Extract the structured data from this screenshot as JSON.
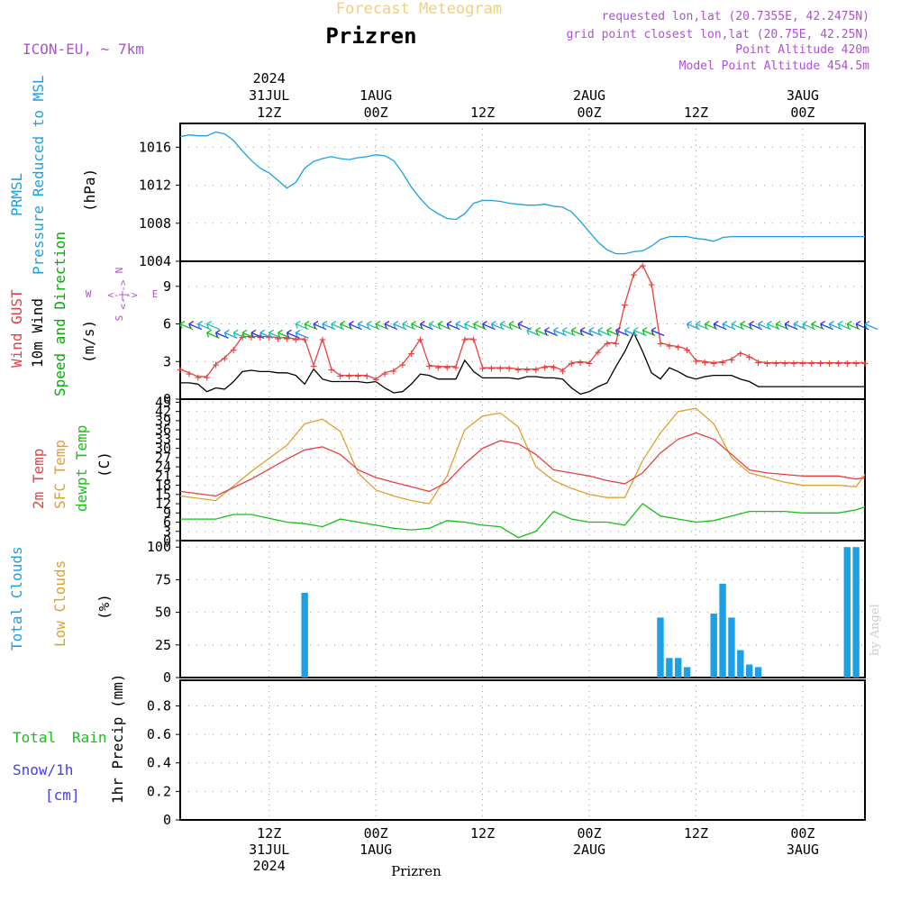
{
  "header": {
    "product_title": "Forecast Meteogram",
    "location": "Prizren",
    "model": "ICON-EU, ~ 7km",
    "requested": "requested lon,lat (20.7355E, 42.2475N)",
    "grid_point": "grid point closest lon,lat (20.75E, 42.25N)",
    "point_altitude": "Point Altitude 420m",
    "model_altitude": "Model Point Altitude 454.5m",
    "footer_location": "Prizren",
    "credit": "by Angel"
  },
  "colors": {
    "pressure": "#1ba0e6",
    "gust": "#e84040",
    "wind": "#000000",
    "wind_dir": "#00b000",
    "t2m": "#e84040",
    "tsfc": "#e0a030",
    "dew": "#18c018",
    "clouds": "#1ba0e6",
    "low_clouds": "#e0a030",
    "rain": "#18c018",
    "snow": "#4040e8",
    "header": "#b050d0"
  },
  "time_axis": {
    "top": [
      {
        "line1": "2024",
        "line2": "31JUL",
        "line3": "12Z",
        "hour": 12
      },
      {
        "line1": "",
        "line2": "1AUG",
        "line3": "00Z",
        "hour": 24
      },
      {
        "line1": "",
        "line2": "",
        "line3": "12Z",
        "hour": 36
      },
      {
        "line1": "",
        "line2": "2AUG",
        "line3": "00Z",
        "hour": 48
      },
      {
        "line1": "",
        "line2": "",
        "line3": "12Z",
        "hour": 60
      },
      {
        "line1": "",
        "line2": "3AUG",
        "line3": "00Z",
        "hour": 72
      }
    ],
    "bottom": [
      {
        "line1": "12Z",
        "line2": "31JUL",
        "line3": "2024",
        "hour": 12
      },
      {
        "line1": "00Z",
        "line2": "1AUG",
        "line3": "",
        "hour": 24
      },
      {
        "line1": "12Z",
        "line2": "",
        "line3": "",
        "hour": 36
      },
      {
        "line1": "00Z",
        "line2": "2AUG",
        "line3": "",
        "hour": 48
      },
      {
        "line1": "12Z",
        "line2": "",
        "line3": "",
        "hour": 60
      },
      {
        "line1": "00Z",
        "line2": "3AUG",
        "line3": "",
        "hour": 72
      }
    ]
  },
  "panels": {
    "pressure": {
      "label1": "PRMSL",
      "label2": "Pressure Reduced to MSL",
      "unit": "(hPa)",
      "ticks": [
        "1004",
        "1008",
        "1012",
        "1016"
      ]
    },
    "wind": {
      "label1": "Wind GUST",
      "label2": "10m Wind",
      "label3": "Speed and Direction",
      "unit": "(m/s)",
      "ticks": [
        "0",
        "3",
        "6",
        "9"
      ],
      "compass_n": "N",
      "compass_s": "S",
      "compass_w": "W",
      "compass_e": "E",
      "compass_arrow": "<-|->"
    },
    "temp": {
      "label1": "2m Temp",
      "label2": "SFC Temp",
      "label3": "dewpt Temp",
      "unit": "(C)",
      "ticks": [
        "0",
        "3",
        "6",
        "9",
        "12",
        "15",
        "18",
        "21",
        "24",
        "27",
        "30",
        "33",
        "36",
        "39",
        "42",
        "45"
      ]
    },
    "clouds": {
      "label1": "Total Clouds",
      "label2": "Low Clouds",
      "unit": "(%)",
      "ticks": [
        "0",
        "25",
        "50",
        "75",
        "100"
      ]
    },
    "precip": {
      "label1": "Total",
      "label1b": "Rain",
      "label2": "Snow/1h",
      "label3": "[cm]",
      "unit": "1hr Precip (mm)",
      "ticks": [
        "0",
        "0.2",
        "0.4",
        "0.6",
        "0.8"
      ]
    }
  },
  "chart_data": [
    {
      "type": "line",
      "title": "PRMSL Pressure Reduced to MSL",
      "ylabel": "(hPa)",
      "ylim": [
        1004,
        1018.5
      ],
      "xlim": [
        2,
        79
      ],
      "x_unit": "hours from 31JUL 00Z",
      "series": [
        {
          "name": "PRMSL",
          "x": [
            2,
            3,
            4,
            5,
            6,
            7,
            8,
            9,
            10,
            11,
            12,
            13,
            14,
            15,
            16,
            17,
            18,
            19,
            20,
            21,
            22,
            23,
            24,
            25,
            26,
            27,
            28,
            29,
            30,
            31,
            32,
            33,
            34,
            35,
            36,
            37,
            38,
            39,
            40,
            41,
            42,
            43,
            44,
            45,
            46,
            47,
            48,
            49,
            50,
            51,
            52,
            53,
            54,
            55,
            56,
            57,
            58,
            59,
            60,
            61,
            62,
            63,
            64,
            65,
            66,
            67,
            68,
            69,
            70,
            71,
            72,
            73,
            74,
            75,
            76,
            77,
            78,
            79
          ],
          "values": [
            1017.1,
            1017.3,
            1017.2,
            1017.2,
            1017.6,
            1017.4,
            1016.7,
            1015.6,
            1014.6,
            1013.8,
            1013.3,
            1012.5,
            1011.7,
            1012.3,
            1013.8,
            1014.5,
            1014.8,
            1015,
            1014.8,
            1014.7,
            1014.9,
            1015,
            1015.2,
            1015.1,
            1014.6,
            1013.3,
            1011.8,
            1010.6,
            1009.6,
            1009.0,
            1008.5,
            1008.4,
            1009.0,
            1010.1,
            1010.4,
            1010.4,
            1010.3,
            1010.1,
            1010.0,
            1009.9,
            1009.9,
            1010.0,
            1009.8,
            1009.7,
            1009.2,
            1008.2,
            1007.1,
            1006.0,
            1005.2,
            1004.8,
            1004.8,
            1005.0,
            1005.1,
            1005.6,
            1006.3,
            1006.6,
            1006.6,
            1006.6,
            1006.4,
            1006.3,
            1006.1,
            1006.5,
            1006.6,
            1006.6,
            1006.6,
            1006.6,
            1006.6,
            1006.6,
            1006.6,
            1006.6,
            1006.6,
            1006.6,
            1006.6,
            1006.6,
            1006.6,
            1006.6,
            1006.6,
            1006.6
          ]
        }
      ]
    },
    {
      "type": "line",
      "title": "Wind",
      "ylabel": "(m/s)",
      "ylim": [
        0,
        11
      ],
      "xlim": [
        2,
        79
      ],
      "series": [
        {
          "name": "Wind GUST",
          "x": [
            2,
            3,
            4,
            5,
            6,
            7,
            8,
            9,
            10,
            11,
            12,
            13,
            14,
            15,
            16,
            17,
            18,
            19,
            20,
            21,
            22,
            23,
            24,
            25,
            26,
            27,
            28,
            29,
            30,
            31,
            32,
            33,
            34,
            35,
            36,
            37,
            38,
            39,
            40,
            41,
            42,
            43,
            44,
            45,
            46,
            47,
            48,
            49,
            50,
            51,
            52,
            53,
            54,
            55,
            56,
            57,
            58,
            59,
            60,
            61,
            62,
            63,
            64,
            65,
            66,
            67,
            68,
            69,
            70,
            71,
            72,
            73,
            74,
            75,
            76,
            77,
            78,
            79
          ],
          "values": [
            2.4,
            2.1,
            1.8,
            1.8,
            2.8,
            3.3,
            4.0,
            5.0,
            5.0,
            5.0,
            5.0,
            4.9,
            4.9,
            4.8,
            4.8,
            2.7,
            4.8,
            2.4,
            1.9,
            1.9,
            1.9,
            1.9,
            1.6,
            2.1,
            2.3,
            2.8,
            3.7,
            4.8,
            2.7,
            2.6,
            2.6,
            2.6,
            4.8,
            4.8,
            2.5,
            2.5,
            2.5,
            2.5,
            2.4,
            2.4,
            2.4,
            2.6,
            2.6,
            2.3,
            2.9,
            3.0,
            2.9,
            3.8,
            4.5,
            4.5,
            7.6,
            10.0,
            10.7,
            9.2,
            4.5,
            4.3,
            4.2,
            4.0,
            3.1,
            3.0,
            2.9,
            3.0,
            3.2,
            3.7,
            3.4,
            3.0,
            2.9,
            2.9,
            2.9,
            2.9,
            2.9,
            2.9,
            2.9,
            2.9,
            2.9,
            2.9,
            2.9,
            2.9
          ]
        },
        {
          "name": "10m Wind",
          "x": [
            2,
            3,
            4,
            5,
            6,
            7,
            8,
            9,
            10,
            11,
            12,
            13,
            14,
            15,
            16,
            17,
            18,
            19,
            20,
            21,
            22,
            23,
            24,
            25,
            26,
            27,
            28,
            29,
            30,
            31,
            32,
            33,
            34,
            35,
            36,
            37,
            38,
            39,
            40,
            41,
            42,
            43,
            44,
            45,
            46,
            47,
            48,
            49,
            50,
            51,
            52,
            53,
            54,
            55,
            56,
            57,
            58,
            59,
            60,
            61,
            62,
            63,
            64,
            65,
            66,
            67,
            68,
            69,
            70,
            71,
            72,
            73,
            74,
            75,
            76,
            77,
            78,
            79
          ],
          "values": [
            1.3,
            1.3,
            1.2,
            0.6,
            0.9,
            0.8,
            1.4,
            2.2,
            2.3,
            2.2,
            2.2,
            2.1,
            2.1,
            1.9,
            1.2,
            2.4,
            1.6,
            1.4,
            1.4,
            1.4,
            1.4,
            1.3,
            1.4,
            0.9,
            0.5,
            0.6,
            1.2,
            2.0,
            1.9,
            1.6,
            1.6,
            1.6,
            3.1,
            2.2,
            1.7,
            1.7,
            1.7,
            1.7,
            1.6,
            1.8,
            1.8,
            1.7,
            1.7,
            1.6,
            0.9,
            0.4,
            0.6,
            1.0,
            1.3,
            2.6,
            3.8,
            5.3,
            3.8,
            2.1,
            1.6,
            2.5,
            2.2,
            1.8,
            1.6,
            1.8,
            1.9,
            1.9,
            1.9,
            1.6,
            1.4,
            1.0,
            1.0,
            1.0,
            1.0,
            1.0,
            1.0,
            1.0,
            1.0,
            1.0,
            1.0,
            1.0,
            1.0,
            1.0
          ]
        }
      ]
    },
    {
      "type": "line",
      "title": "Temperature",
      "ylabel": "(C)",
      "ylim": [
        0,
        46
      ],
      "xlim": [
        2,
        79
      ],
      "series": [
        {
          "name": "2m Temp",
          "x": [
            2,
            6,
            10,
            14,
            16,
            18,
            20,
            22,
            24,
            26,
            28,
            30,
            32,
            34,
            36,
            38,
            40,
            42,
            44,
            46,
            48,
            50,
            52,
            54,
            56,
            58,
            60,
            62,
            64,
            66,
            68,
            70,
            72,
            74,
            76,
            78,
            79
          ],
          "values": [
            16,
            14.5,
            20,
            26.5,
            29.5,
            30.5,
            28,
            23,
            20.5,
            19,
            17.5,
            16,
            19,
            25,
            30,
            32.5,
            31.5,
            28,
            23,
            22,
            21,
            19.5,
            18.5,
            22,
            28.5,
            33,
            35,
            33,
            28,
            23,
            22,
            21.5,
            21,
            21,
            21,
            20,
            20.5
          ]
        },
        {
          "name": "SFC Temp",
          "x": [
            2,
            6,
            10,
            14,
            16,
            18,
            20,
            22,
            24,
            26,
            28,
            30,
            32,
            34,
            36,
            38,
            40,
            42,
            44,
            46,
            48,
            50,
            52,
            54,
            56,
            58,
            60,
            62,
            64,
            66,
            68,
            70,
            72,
            74,
            76,
            78,
            79
          ],
          "values": [
            14.5,
            13.0,
            22.5,
            31.0,
            38.0,
            39.5,
            35.5,
            22.0,
            16.5,
            14.5,
            13.0,
            12.0,
            21.0,
            36.0,
            40.5,
            41.5,
            37.0,
            24.0,
            19.5,
            17.0,
            15.0,
            14.0,
            14.0,
            26.0,
            35.0,
            42.0,
            43.0,
            38.0,
            27.0,
            22.0,
            20.5,
            19.0,
            18.0,
            18.0,
            18.0,
            17.5,
            21.5
          ]
        },
        {
          "name": "dewpt Temp",
          "x": [
            2,
            6,
            8,
            10,
            14,
            16,
            18,
            20,
            22,
            24,
            26,
            28,
            30,
            32,
            34,
            36,
            38,
            40,
            42,
            44,
            46,
            48,
            50,
            52,
            54,
            56,
            58,
            60,
            62,
            64,
            66,
            68,
            70,
            72,
            74,
            76,
            78,
            79
          ],
          "values": [
            7,
            7,
            8.5,
            8.5,
            6,
            5.5,
            4.5,
            7,
            6,
            5,
            4,
            3.5,
            4,
            6.5,
            6,
            5,
            4.5,
            1,
            3,
            9.5,
            7,
            6,
            6,
            5,
            12,
            8,
            7,
            6,
            6.5,
            8,
            9.5,
            9.5,
            9.5,
            9,
            9,
            9,
            10,
            11
          ]
        }
      ]
    },
    {
      "type": "bar",
      "title": "Clouds",
      "ylabel": "(%)",
      "ylim": [
        0,
        105
      ],
      "xlim": [
        2,
        79
      ],
      "series": [
        {
          "name": "Total Clouds",
          "x": [
            16,
            17,
            56,
            57,
            58,
            59,
            60,
            62,
            63,
            64,
            65,
            66,
            67,
            70,
            71,
            72,
            73,
            76,
            77,
            78
          ],
          "values": [
            65,
            3,
            46,
            15,
            15,
            8,
            4,
            49,
            72,
            46,
            21,
            10,
            8,
            2,
            4,
            4,
            1,
            0.5,
            100,
            100
          ]
        },
        {
          "name": "Low Clouds",
          "x": [],
          "values": []
        }
      ]
    },
    {
      "type": "bar",
      "title": "1hr Precip",
      "ylabel": "1hr Precip (mm)",
      "ylim": [
        0,
        0.98
      ],
      "xlim": [
        2,
        79
      ],
      "series": [
        {
          "name": "Total Rain",
          "x": [],
          "values": []
        },
        {
          "name": "Snow/1h",
          "x": [],
          "values": []
        }
      ]
    }
  ],
  "wind_barbs": {
    "note": "direction arrows along 10m wind",
    "segments": [
      {
        "x_start": 2,
        "x_end": 5,
        "speed": 6,
        "color": "#1ba0e6"
      },
      {
        "x_start": 5,
        "x_end": 15,
        "speed": 5.3,
        "color": "#1ba0e6"
      },
      {
        "x_start": 15,
        "x_end": 29,
        "speed": 6,
        "color": "#1ba0e6"
      },
      {
        "x_start": 30,
        "x_end": 40,
        "speed": 6,
        "color": "#1ba0e6"
      },
      {
        "x_start": 41,
        "x_end": 55,
        "speed": 5.5,
        "color": "#3030e0"
      },
      {
        "x_start": 59,
        "x_end": 79,
        "speed": 6,
        "color": "#1ba0e6"
      }
    ]
  }
}
